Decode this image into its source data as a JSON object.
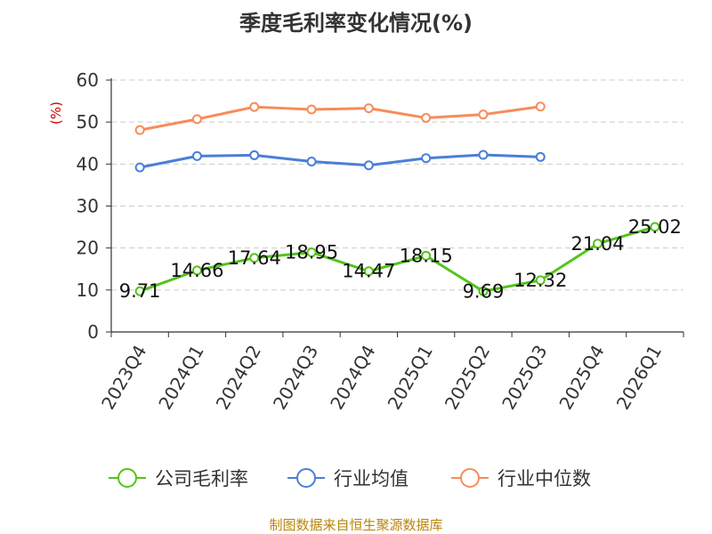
{
  "chart_data": {
    "type": "line",
    "title": "季度毛利率变化情况(%)",
    "ylabel": "(%)",
    "ylim": [
      0,
      60
    ],
    "yticks": [
      0,
      10,
      20,
      30,
      40,
      50,
      60
    ],
    "grid": true,
    "legend_position": "bottom",
    "categories": [
      "2023Q4",
      "2024Q1",
      "2024Q2",
      "2024Q3",
      "2024Q4",
      "2025Q1",
      "2025Q2",
      "2025Q3",
      "2025Q4",
      "2026Q1"
    ],
    "series": [
      {
        "name": "公司毛利率",
        "color": "#52c41a",
        "show_labels": true,
        "values": [
          9.71,
          14.66,
          17.64,
          18.95,
          14.47,
          18.15,
          9.69,
          12.32,
          21.04,
          25.02
        ]
      },
      {
        "name": "行业均值",
        "color": "#4a7fd8",
        "show_labels": false,
        "values": [
          39.2,
          41.9,
          42.1,
          40.6,
          39.7,
          41.4,
          42.2,
          41.7,
          null,
          null
        ]
      },
      {
        "name": "行业中位数",
        "color": "#f78c5a",
        "show_labels": false,
        "values": [
          48.1,
          50.7,
          53.6,
          53.0,
          53.3,
          51.0,
          51.8,
          53.7,
          null,
          null
        ]
      }
    ]
  },
  "ylabel_color": "#cc0000",
  "source": "制图数据来自恒生聚源数据库"
}
